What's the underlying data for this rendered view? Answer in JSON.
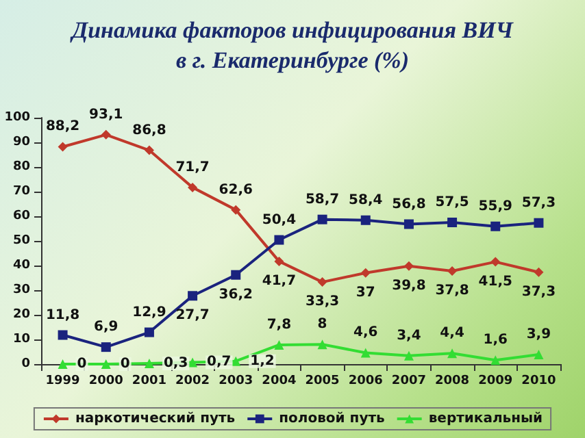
{
  "chart_data": {
    "type": "line",
    "title": "Динамика факторов инфицирования ВИЧ\nв г. Екатеринбурге (%)",
    "categories": [
      "1999",
      "2000",
      "2001",
      "2002",
      "2003",
      "2004",
      "2005",
      "2006",
      "2007",
      "2008",
      "2009",
      "2010"
    ],
    "series": [
      {
        "name": "наркотический путь",
        "color": "#c0392b",
        "marker": "diamond",
        "values": [
          88.2,
          93.1,
          86.8,
          71.7,
          62.6,
          41.7,
          33.3,
          37,
          39.8,
          37.8,
          41.5,
          37.3
        ],
        "value_labels": [
          "88,2",
          "93,1",
          "86,8",
          "71,7",
          "62,6",
          "41,7",
          "33,3",
          "37",
          "39,8",
          "37,8",
          "41,5",
          "37,3"
        ]
      },
      {
        "name": "половой путь",
        "color": "#1a237e",
        "marker": "square",
        "values": [
          11.8,
          6.9,
          12.9,
          27.7,
          36.2,
          50.4,
          58.7,
          58.4,
          56.8,
          57.5,
          55.9,
          57.3
        ],
        "value_labels": [
          "11,8",
          "6,9",
          "12,9",
          "27,7",
          "36,2",
          "50,4",
          "58,7",
          "58,4",
          "56,8",
          "57,5",
          "55,9",
          "57,3"
        ]
      },
      {
        "name": "вертикальный",
        "color": "#33dd33",
        "marker": "triangle",
        "values": [
          0,
          0,
          0.3,
          0.7,
          1.2,
          7.8,
          8,
          4.6,
          3.4,
          4.4,
          1.6,
          3.9
        ],
        "value_labels": [
          "0",
          "0",
          "0,3",
          "0,7",
          "1,2",
          "7,8",
          "8",
          "4,6",
          "3,4",
          "4,4",
          "1,6",
          "3,9"
        ]
      }
    ],
    "ylim": [
      0,
      100
    ],
    "yticks": [
      0,
      10,
      20,
      30,
      40,
      50,
      60,
      70,
      80,
      90,
      100
    ],
    "grid": false,
    "legend": "bottom"
  }
}
